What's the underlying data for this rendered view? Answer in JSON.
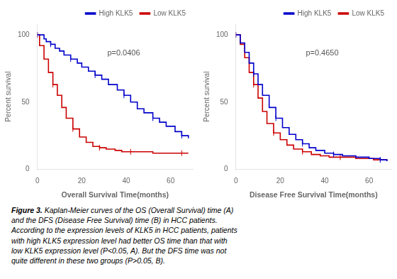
{
  "chart_data": [
    {
      "type": "line",
      "x_label": "Overall Survival Time(months)",
      "y_label": "Percent survival",
      "annotations": [
        "p=0.0406"
      ],
      "xlim": [
        0,
        70
      ],
      "ylim": [
        0,
        108
      ],
      "xticks": [
        0,
        20,
        40,
        60
      ],
      "yticks": [
        0,
        50,
        100
      ],
      "grid": false,
      "legend": "upper right",
      "series": [
        {
          "name": "High KLK5",
          "color": "#0000cc",
          "line_style": "step",
          "marker": "vline",
          "x": [
            0,
            1,
            3,
            4,
            6,
            8,
            10,
            12,
            15,
            18,
            20,
            23,
            26,
            29,
            32,
            36,
            39,
            42,
            45,
            48,
            52,
            55,
            58,
            62,
            65,
            68
          ],
          "values": [
            100,
            100,
            97,
            95,
            93,
            90,
            88,
            85,
            82,
            79,
            76,
            73,
            70,
            67,
            63,
            59,
            55,
            50,
            45,
            42,
            38,
            35,
            32,
            28,
            25,
            23
          ]
        },
        {
          "name": "Low KLK5",
          "color": "#cc0000",
          "line_style": "step",
          "marker": "vline",
          "x": [
            0,
            1,
            3,
            5,
            7,
            9,
            11,
            13,
            16,
            19,
            22,
            25,
            28,
            31,
            35,
            38,
            42,
            46,
            52,
            58,
            65,
            68
          ],
          "values": [
            100,
            92,
            82,
            72,
            63,
            55,
            46,
            38,
            30,
            24,
            20,
            17,
            16,
            15,
            14,
            13,
            13,
            13,
            12,
            12,
            12,
            12
          ]
        }
      ]
    },
    {
      "type": "line",
      "x_label": "Disease Free Survival Time(months)",
      "y_label": "Percent survival",
      "annotations": [
        "p=0.4650"
      ],
      "xlim": [
        0,
        70
      ],
      "ylim": [
        0,
        108
      ],
      "xticks": [
        0,
        20,
        40,
        60
      ],
      "yticks": [
        0,
        50,
        100
      ],
      "grid": false,
      "legend": "upper right",
      "series": [
        {
          "name": "High KLK5",
          "color": "#0000cc",
          "line_style": "step",
          "marker": "vline",
          "x": [
            0,
            2,
            4,
            6,
            8,
            10,
            12,
            15,
            18,
            21,
            24,
            27,
            30,
            33,
            36,
            40,
            44,
            48,
            54,
            60,
            65,
            68
          ],
          "values": [
            100,
            94,
            87,
            79,
            71,
            63,
            55,
            46,
            38,
            31,
            26,
            22,
            19,
            16,
            14,
            12,
            11,
            10,
            9,
            8,
            7,
            6
          ]
        },
        {
          "name": "Low KLK5",
          "color": "#cc0000",
          "line_style": "step",
          "marker": "vline",
          "x": [
            0,
            2,
            4,
            6,
            8,
            10,
            12,
            14,
            17,
            20,
            23,
            26,
            30,
            34,
            38,
            42,
            47,
            54,
            62,
            68
          ],
          "values": [
            100,
            93,
            83,
            72,
            63,
            53,
            43,
            34,
            27,
            22,
            18,
            15,
            13,
            11,
            10,
            9,
            9,
            8,
            7,
            6
          ]
        }
      ]
    }
  ],
  "caption": "Figure 3. Kaplan-Meier curves of the OS (Overall Survival) time (A)\nand the DFS (Disease Free Survival) time (B) in HCC patients.\nAccording to the expression levels of KLK5 in HCC patients, patients\nwith high KLK5 expression level had better OS time than that with\nlow KLK5 expression level (P<0.05, A). But the DFS time was not\nquite different in these two groups (P>0.05, B)."
}
